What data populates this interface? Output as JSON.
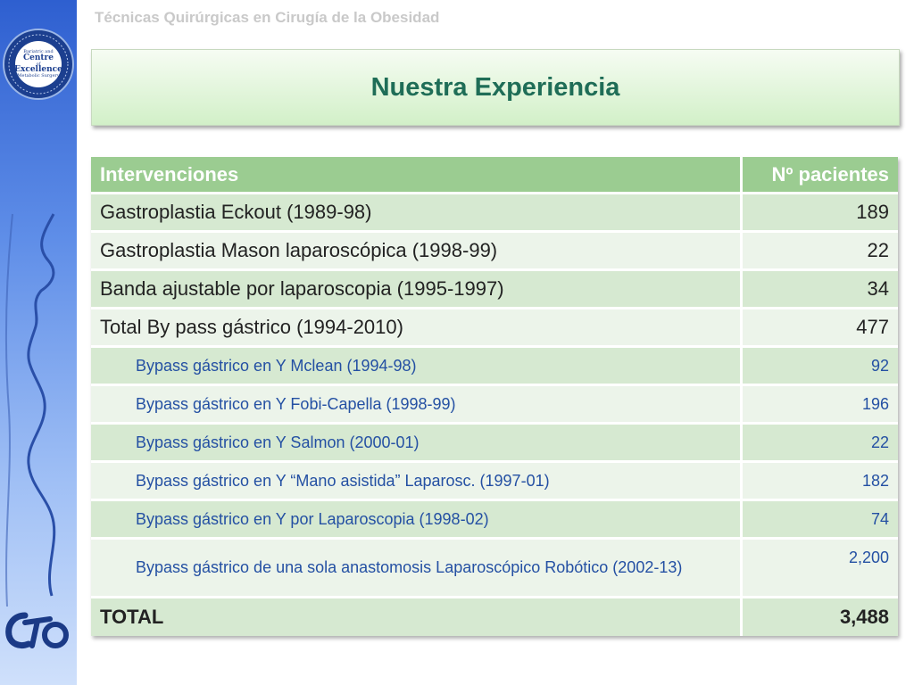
{
  "header": {
    "course_title": "Técnicas Quirúrgicas en Cirugía de la Obesidad"
  },
  "slide": {
    "title": "Nuestra Experiencia"
  },
  "badge": {
    "ring_text": "IFSO European Chapter · European Accreditation Council",
    "line1": "Bariatric and",
    "line2": "Centre",
    "line3": "of",
    "line4": "Excellence",
    "line5": "Metabolic Surgery"
  },
  "logo": {
    "icon": "cto-logo-icon"
  },
  "table": {
    "headers": [
      "Intervenciones",
      "Nº pacientes"
    ],
    "rows": [
      {
        "label": "Gastroplastia Eckout (1989-98)",
        "value": "189"
      },
      {
        "label": "Gastroplastia Mason laparoscópica (1998-99)",
        "value": "22"
      },
      {
        "label": "Banda ajustable por laparoscopia (1995-1997)",
        "value": "34"
      },
      {
        "label": "Total By pass gástrico (1994-2010)",
        "value": "477"
      },
      {
        "label": "Bypass gástrico en Y Mclean (1994-98)",
        "value": "92"
      },
      {
        "label": "Bypass gástrico en Y Fobi-Capella (1998-99)",
        "value": "196"
      },
      {
        "label": "Bypass gástrico en Y Salmon (2000-01)",
        "value": "22"
      },
      {
        "label": "Bypass gástrico en Y “Mano asistida” Laparosc. (1997-01)",
        "value": "182"
      },
      {
        "label": "Bypass gástrico en Y por Laparoscopia (1998-02)",
        "value": "74"
      },
      {
        "label": "Bypass gástrico de una sola anastomosis Laparoscópico Robótico (2002-13)",
        "value": "2,200"
      }
    ],
    "total": {
      "label": "TOTAL",
      "value": "3,488"
    }
  },
  "colors": {
    "header_fill": "#9bcc91",
    "row_dark": "#d6e9d1",
    "row_light": "#ecf4ea",
    "title_text": "#1f6d57",
    "sub_text": "#2450a3",
    "sidebar": "#2e5fd0"
  }
}
